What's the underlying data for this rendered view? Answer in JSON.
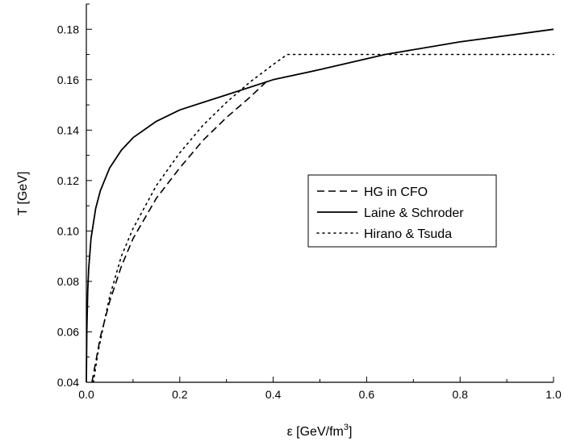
{
  "chart_data": {
    "type": "line",
    "title": "",
    "xlabel": "ε [GeV/fm",
    "xlabel_sup": "3",
    "xlabel_tail": "]",
    "ylabel": "T [GeV]",
    "xlim": [
      0.0,
      1.0
    ],
    "ylim": [
      0.04,
      0.19
    ],
    "x_ticks": [
      0.0,
      0.2,
      0.4,
      0.6,
      0.8,
      1.0
    ],
    "x_tick_labels": [
      "0.0",
      "0.2",
      "0.4",
      "0.6",
      "0.8",
      "1.0"
    ],
    "y_ticks": [
      0.04,
      0.06,
      0.08,
      0.1,
      0.12,
      0.14,
      0.16,
      0.18
    ],
    "y_tick_labels": [
      "0.04",
      "0.06",
      "0.08",
      "0.10",
      "0.12",
      "0.14",
      "0.16",
      "0.18"
    ],
    "grid": false,
    "legend_position": "center-right",
    "series": [
      {
        "name": "HG in CFO",
        "style": "dashed",
        "x": [
          0.012,
          0.02,
          0.03,
          0.05,
          0.075,
          0.1,
          0.15,
          0.2,
          0.25,
          0.3,
          0.35,
          0.39
        ],
        "y": [
          0.04,
          0.048,
          0.058,
          0.072,
          0.086,
          0.097,
          0.113,
          0.125,
          0.136,
          0.145,
          0.153,
          0.16
        ]
      },
      {
        "name": "Laine & Schroder",
        "style": "solid",
        "x": [
          0.0,
          0.001,
          0.003,
          0.005,
          0.01,
          0.02,
          0.03,
          0.05,
          0.075,
          0.1,
          0.15,
          0.2,
          0.25,
          0.3,
          0.4,
          0.5,
          0.64,
          0.8,
          1.0
        ],
        "y": [
          0.04,
          0.06,
          0.076,
          0.085,
          0.097,
          0.109,
          0.116,
          0.125,
          0.132,
          0.137,
          0.1435,
          0.148,
          0.151,
          0.154,
          0.16,
          0.164,
          0.17,
          0.175,
          0.18
        ]
      },
      {
        "name": "Hirano & Tsuda",
        "style": "dotted",
        "x": [
          0.015,
          0.025,
          0.035,
          0.05,
          0.075,
          0.1,
          0.15,
          0.2,
          0.25,
          0.3,
          0.35,
          0.4,
          0.43,
          0.6,
          0.8,
          1.0
        ],
        "y": [
          0.04,
          0.052,
          0.061,
          0.074,
          0.09,
          0.101,
          0.118,
          0.131,
          0.142,
          0.151,
          0.159,
          0.166,
          0.17,
          0.17,
          0.17,
          0.17
        ]
      }
    ]
  }
}
